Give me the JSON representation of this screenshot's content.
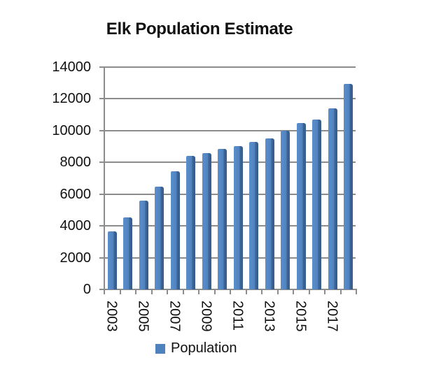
{
  "chart_data": {
    "type": "bar",
    "title": "Elk Population Estimate",
    "xlabel": "",
    "ylabel": "",
    "categories": [
      "2003",
      "2004",
      "2005",
      "2006",
      "2007",
      "2008",
      "2009",
      "2010",
      "2011",
      "2012",
      "2013",
      "2014",
      "2015",
      "2016",
      "2017",
      "2018"
    ],
    "series": [
      {
        "name": "Population",
        "color": "#4F81BD",
        "values": [
          3650,
          4550,
          5600,
          6480,
          7440,
          8400,
          8590,
          8850,
          9030,
          9290,
          9520,
          10000,
          10480,
          10700,
          11420,
          12950
        ]
      }
    ],
    "ylim": [
      0,
      14000
    ],
    "yticks": [
      "0",
      "2000",
      "4000",
      "6000",
      "8000",
      "10000",
      "12000",
      "14000"
    ],
    "xtick_labels": [
      "2003",
      "2005",
      "2007",
      "2009",
      "2011",
      "2013",
      "2015",
      "2017"
    ],
    "grid": true,
    "legend_position": "bottom"
  },
  "legend": {
    "label": "Population"
  }
}
